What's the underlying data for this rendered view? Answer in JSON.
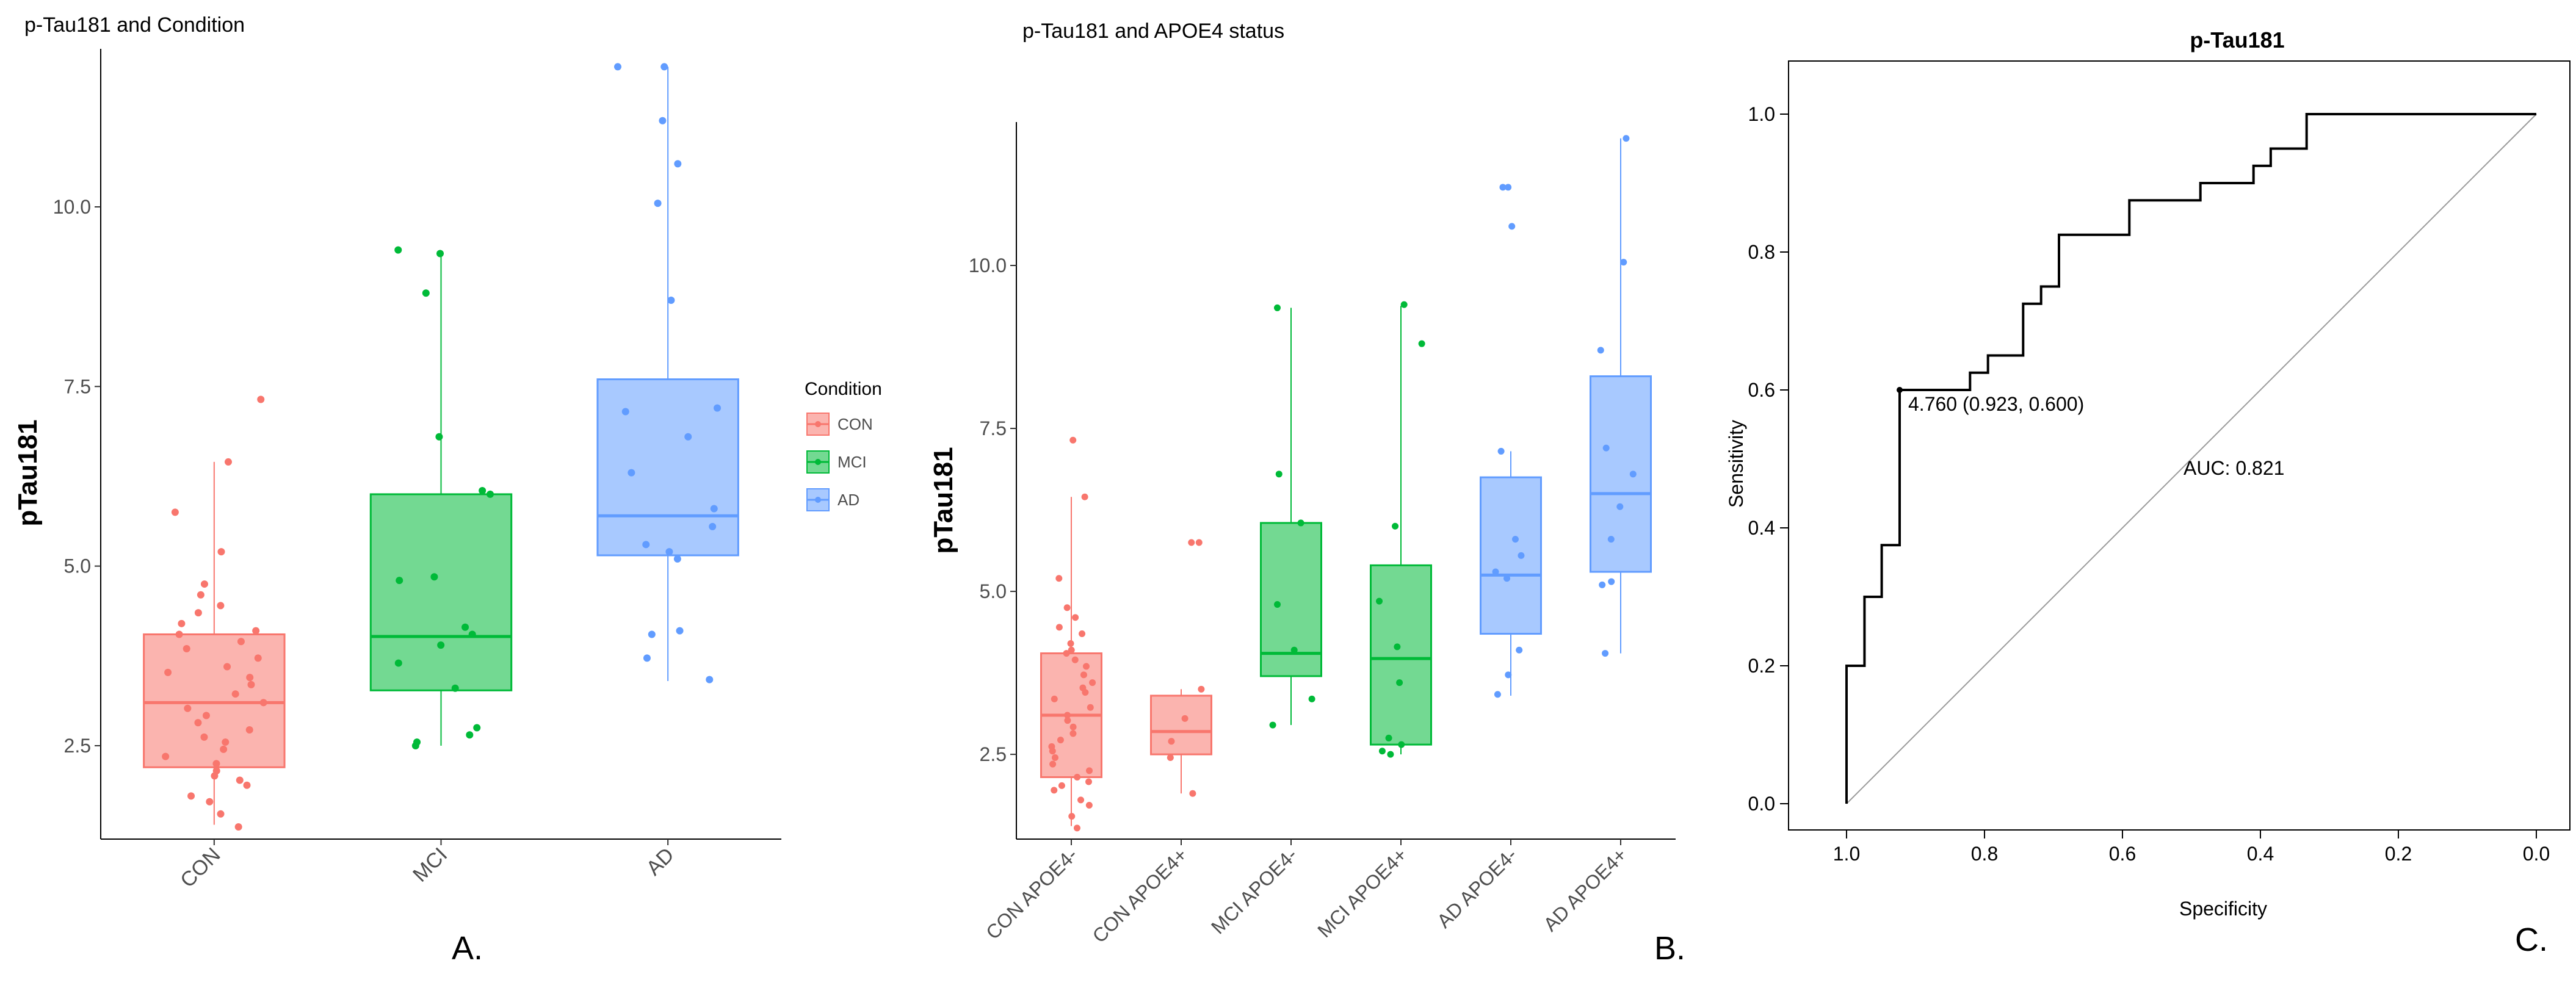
{
  "colors": {
    "CON": "#F8766D",
    "MCI": "#00BA38",
    "AD": "#619CFF"
  },
  "chart_data": [
    {
      "type": "box",
      "title": "p-Tau181 and Condition",
      "ylabel": "pTau181",
      "xlabel": "",
      "categories": [
        "CON",
        "MCI",
        "AD"
      ],
      "ylim": [
        1.2,
        12.2
      ],
      "yticks": [
        2.5,
        5.0,
        7.5,
        10.0
      ],
      "ytick_labels": [
        "2.5",
        "5.0",
        "7.5",
        "10.0"
      ],
      "legend": {
        "title": "Condition",
        "position": "right",
        "entries": [
          "CON",
          "MCI",
          "AD"
        ]
      },
      "boxes": [
        {
          "group": "CON",
          "color_key": "CON",
          "q1": 2.2,
          "median": 3.1,
          "q3": 4.05,
          "whisker_low": 1.4,
          "whisker_high": 6.45,
          "points": [
            1.37,
            1.55,
            1.72,
            1.8,
            1.95,
            2.02,
            2.08,
            2.15,
            2.25,
            2.35,
            2.45,
            2.55,
            2.62,
            2.72,
            2.82,
            2.92,
            3.02,
            3.1,
            3.22,
            3.35,
            3.45,
            3.52,
            3.6,
            3.72,
            3.85,
            3.95,
            4.05,
            4.1,
            4.2,
            4.35,
            4.45,
            4.6,
            4.75,
            5.2,
            5.75,
            6.45,
            7.32
          ]
        },
        {
          "group": "MCI",
          "color_key": "MCI",
          "q1": 3.27,
          "median": 4.02,
          "q3": 6.0,
          "whisker_low": 2.5,
          "whisker_high": 9.38,
          "points": [
            2.5,
            2.55,
            2.65,
            2.75,
            3.3,
            3.65,
            3.9,
            4.05,
            4.15,
            4.8,
            4.85,
            6.0,
            6.05,
            6.8,
            8.8,
            9.35,
            9.4
          ]
        },
        {
          "group": "AD",
          "color_key": "AD",
          "q1": 5.15,
          "median": 5.7,
          "q3": 7.6,
          "whisker_low": 3.4,
          "whisker_high": 11.95,
          "points": [
            3.42,
            3.72,
            4.05,
            4.1,
            5.1,
            5.2,
            5.3,
            5.55,
            5.8,
            6.3,
            6.8,
            7.15,
            7.2,
            8.7,
            10.05,
            10.6,
            11.2,
            11.95,
            11.95
          ]
        }
      ],
      "panel_label": "A."
    },
    {
      "type": "box",
      "title": "p-Tau181 and APOE4 status",
      "ylabel": "pTau181",
      "xlabel": "",
      "categories": [
        "CON APOE4-",
        "CON APOE4+",
        "MCI APOE4-",
        "MCI APOE4+",
        "AD APOE4-",
        "AD APOE4+"
      ],
      "ylim": [
        1.2,
        12.2
      ],
      "yticks": [
        2.5,
        5.0,
        7.5,
        10.0
      ],
      "ytick_labels": [
        "2.5",
        "5.0",
        "7.5",
        "10.0"
      ],
      "boxes": [
        {
          "group": "CON APOE4-",
          "color_key": "CON",
          "q1": 2.15,
          "median": 3.1,
          "q3": 4.05,
          "whisker_low": 1.4,
          "whisker_high": 6.45,
          "points": [
            1.37,
            1.55,
            1.72,
            1.8,
            1.95,
            2.02,
            2.08,
            2.15,
            2.25,
            2.35,
            2.45,
            2.55,
            2.62,
            2.72,
            2.82,
            2.92,
            3.02,
            3.1,
            3.22,
            3.35,
            3.45,
            3.52,
            3.6,
            3.72,
            3.85,
            3.95,
            4.05,
            4.1,
            4.2,
            4.35,
            4.45,
            4.6,
            4.75,
            5.2,
            6.45,
            7.32
          ]
        },
        {
          "group": "CON APOE4+",
          "color_key": "CON",
          "q1": 2.5,
          "median": 2.85,
          "q3": 3.4,
          "whisker_low": 1.9,
          "whisker_high": 3.5,
          "points": [
            1.9,
            2.45,
            2.7,
            3.05,
            3.5,
            5.75,
            5.75
          ]
        },
        {
          "group": "MCI APOE4-",
          "color_key": "MCI",
          "q1": 3.7,
          "median": 4.05,
          "q3": 6.05,
          "whisker_low": 2.95,
          "whisker_high": 9.35,
          "points": [
            2.95,
            3.35,
            4.1,
            4.8,
            6.05,
            6.8,
            9.35
          ]
        },
        {
          "group": "MCI APOE4+",
          "color_key": "MCI",
          "q1": 2.65,
          "median": 3.97,
          "q3": 5.4,
          "whisker_low": 2.5,
          "whisker_high": 9.38,
          "points": [
            2.5,
            2.55,
            2.65,
            2.75,
            3.6,
            4.15,
            4.85,
            6.0,
            8.8,
            9.4
          ]
        },
        {
          "group": "AD APOE4-",
          "color_key": "AD",
          "q1": 4.35,
          "median": 5.25,
          "q3": 6.75,
          "whisker_low": 3.4,
          "whisker_high": 7.15,
          "points": [
            3.42,
            3.72,
            4.1,
            5.2,
            5.3,
            5.55,
            5.8,
            7.15,
            10.6,
            11.2,
            11.2
          ]
        },
        {
          "group": "AD APOE4+",
          "color_key": "AD",
          "q1": 5.3,
          "median": 6.5,
          "q3": 8.3,
          "whisker_low": 4.05,
          "whisker_high": 11.95,
          "points": [
            4.05,
            5.1,
            5.15,
            5.8,
            6.3,
            6.8,
            7.2,
            8.7,
            10.05,
            11.95
          ]
        }
      ],
      "panel_label": "B."
    },
    {
      "type": "line",
      "title": "p-Tau181",
      "xlabel": "Specificity",
      "ylabel": "Sensitivity",
      "xlim": [
        1.0,
        0.0
      ],
      "ylim": [
        0.0,
        1.0
      ],
      "xticks": [
        1.0,
        0.8,
        0.6,
        0.4,
        0.2,
        0.0
      ],
      "xtick_labels": [
        "1.0",
        "0.8",
        "0.6",
        "0.4",
        "0.2",
        "0.0"
      ],
      "yticks": [
        0.0,
        0.2,
        0.4,
        0.6,
        0.8,
        1.0
      ],
      "ytick_labels": [
        "0.0",
        "0.2",
        "0.4",
        "0.6",
        "0.8",
        "1.0"
      ],
      "series": [
        {
          "type": "step",
          "x": [
            1.0,
            1.0,
            0.974,
            0.974,
            0.949,
            0.949,
            0.923,
            0.923,
            0.821,
            0.821,
            0.795,
            0.795,
            0.744,
            0.744,
            0.718,
            0.718,
            0.692,
            0.692,
            0.59,
            0.59,
            0.487,
            0.487,
            0.41,
            0.41,
            0.385,
            0.385,
            0.333,
            0.333,
            0.0
          ],
          "y": [
            0.0,
            0.2,
            0.2,
            0.3,
            0.3,
            0.375,
            0.375,
            0.6,
            0.6,
            0.625,
            0.625,
            0.65,
            0.65,
            0.725,
            0.725,
            0.75,
            0.75,
            0.825,
            0.825,
            0.875,
            0.875,
            0.9,
            0.9,
            0.925,
            0.925,
            0.95,
            0.95,
            1.0,
            1.0
          ]
        }
      ],
      "reference_line": {
        "x": [
          1.0,
          0.0
        ],
        "y": [
          0.0,
          1.0
        ]
      },
      "threshold_point": {
        "x": 0.923,
        "y": 0.6
      },
      "annotations": [
        "4.760 (0.923, 0.600)",
        "AUC: 0.821"
      ],
      "panel_label": "C."
    }
  ]
}
